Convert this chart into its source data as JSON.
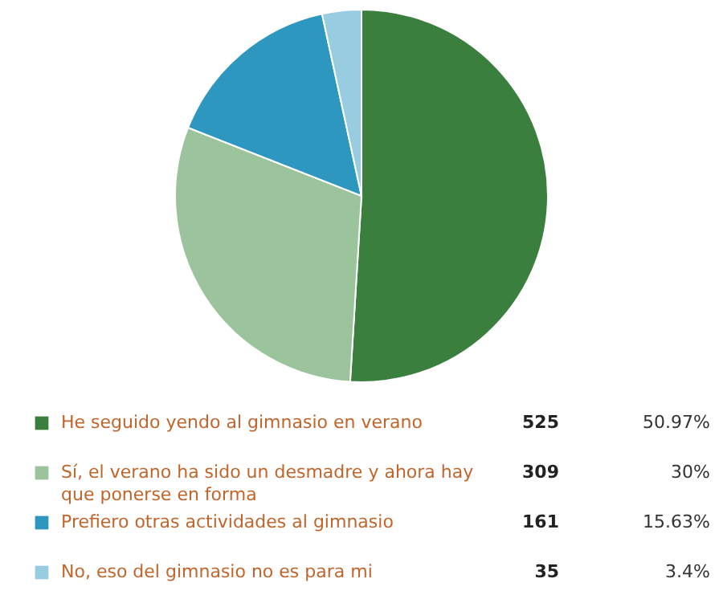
{
  "chart_data": {
    "type": "pie",
    "categories": [
      "He seguido yendo al gimnasio en verano",
      "Sí, el verano ha sido un desmadre y ahora hay que ponerse en forma",
      "Prefiero otras actividades al gimnasio",
      "No, eso del gimnasio no es para mi"
    ],
    "values": [
      525,
      309,
      161,
      35
    ],
    "colors": [
      "#3a7f3d",
      "#9cc49c",
      "#2e97bf",
      "#98cce0"
    ],
    "data_labels": true,
    "legend": "bottom",
    "annotations": [
      "50.97%",
      "30%",
      "15.63%",
      "3.4%"
    ]
  }
}
